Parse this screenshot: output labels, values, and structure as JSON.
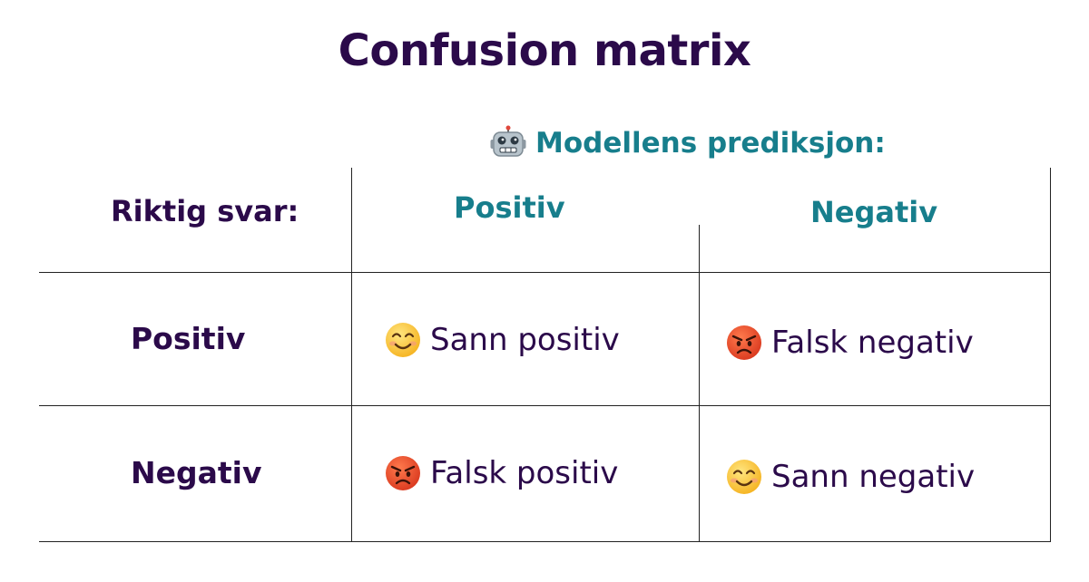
{
  "title": "Confusion matrix",
  "prediction_header": "Modellens prediksjon:",
  "actual_header": "Riktig svar:",
  "columns": [
    "Positiv",
    "Negativ"
  ],
  "rows": [
    "Positiv",
    "Negativ"
  ],
  "cells": [
    {
      "label": "Sann positiv",
      "icon": "smiling-face-icon"
    },
    {
      "label": "Falsk negativ",
      "icon": "angry-face-icon"
    },
    {
      "label": "Falsk positiv",
      "icon": "angry-face-icon"
    },
    {
      "label": "Sann negativ",
      "icon": "smiling-face-icon"
    }
  ],
  "colors": {
    "title": "#2b0a4a",
    "prediction": "#177e8c",
    "grid": "#222222"
  }
}
